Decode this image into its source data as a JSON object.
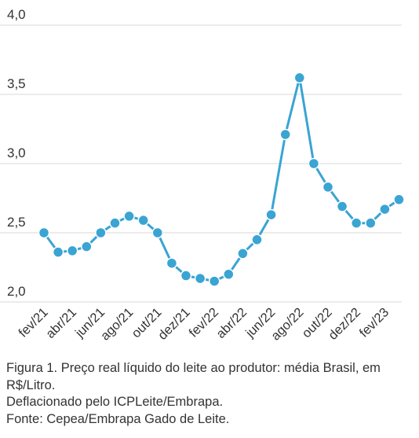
{
  "chart_data": {
    "type": "line",
    "x": [
      "fev/21",
      "mar/21",
      "abr/21",
      "mai/21",
      "jun/21",
      "jul/21",
      "ago/21",
      "set/21",
      "out/21",
      "nov/21",
      "dez/21",
      "jan/22",
      "fev/22",
      "mar/22",
      "abr/22",
      "mai/22",
      "jun/22",
      "jul/22",
      "ago/22",
      "set/22",
      "out/22",
      "nov/22",
      "dez/22",
      "jan/23",
      "fev/23",
      "mar/23"
    ],
    "x_tick_labels": [
      "fev/21",
      "abr/21",
      "jun/21",
      "ago/21",
      "out/21",
      "dez/21",
      "fev/22",
      "abr/22",
      "jun/22",
      "ago/22",
      "out/22",
      "dez/22",
      "fev/23"
    ],
    "y_tick_labels": [
      "2,0",
      "2,5",
      "3,0",
      "3,5",
      "4,0"
    ],
    "y_ticks": [
      2.0,
      2.5,
      3.0,
      3.5,
      4.0
    ],
    "ylim": [
      2.0,
      4.0
    ],
    "series": [
      {
        "values": [
          2.5,
          2.36,
          2.37,
          2.4,
          2.5,
          2.57,
          2.62,
          2.59,
          2.5,
          2.28,
          2.19,
          2.17,
          2.15,
          2.2,
          2.35,
          2.45,
          2.63,
          3.21,
          3.62,
          3.0,
          2.83,
          2.69,
          2.57,
          2.57,
          2.67,
          2.74
        ]
      }
    ],
    "xlabel": "",
    "ylabel": "",
    "grid": true,
    "colors": {
      "line": "#3aa4d3",
      "marker": "#3aa4d3",
      "grid": "#d9d9d9",
      "text": "#333333"
    }
  },
  "caption": {
    "line1": "Figura 1. Preço real líquido do leite ao produtor: média Brasil, em R$/Litro.",
    "line2": "Deflacionado pelo ICPLeite/Embrapa.",
    "line3": "Fonte: Cepea/Embrapa Gado de Leite."
  }
}
